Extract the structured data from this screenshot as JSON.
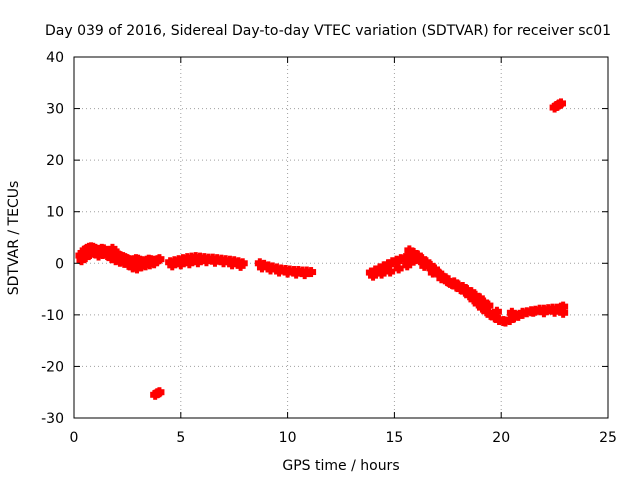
{
  "chart_data": {
    "type": "scatter",
    "title": "Day 039 of 2016, Sidereal Day-to-day VTEC variation (SDTVAR) for receiver sc01",
    "xlabel": "GPS time / hours",
    "ylabel": "SDTVAR / TECUs",
    "xlim": [
      0,
      25
    ],
    "ylim": [
      -30,
      40
    ],
    "xticks": [
      0,
      5,
      10,
      15,
      20,
      25
    ],
    "yticks": [
      -30,
      -20,
      -10,
      0,
      10,
      20,
      30,
      40
    ],
    "grid": true,
    "marker_color": "#ff0000",
    "series": [
      {
        "name": "SDTVAR",
        "x": [
          0.3,
          0.4,
          0.5,
          0.6,
          0.7,
          0.8,
          0.9,
          1.0,
          1.1,
          1.2,
          1.3,
          1.4,
          1.5,
          1.6,
          1.7,
          1.8,
          1.9,
          2.0,
          2.1,
          2.2,
          2.3,
          2.4,
          2.5,
          2.6,
          2.7,
          2.8,
          2.9,
          3.0,
          3.1,
          3.2,
          3.3,
          3.4,
          3.5,
          3.6,
          3.7,
          3.8,
          3.9,
          4.0,
          0.35,
          0.55,
          0.75,
          0.95,
          1.15,
          1.35,
          1.55,
          1.75,
          1.95,
          2.15,
          2.35,
          2.55,
          2.75,
          2.95,
          3.15,
          3.35,
          3.55,
          3.75,
          4.5,
          4.7,
          4.9,
          5.1,
          5.3,
          5.5,
          5.7,
          5.9,
          6.1,
          6.3,
          6.5,
          6.7,
          6.9,
          7.1,
          7.3,
          7.5,
          7.7,
          7.9,
          4.6,
          5.0,
          5.4,
          5.8,
          6.2,
          6.6,
          7.0,
          7.4,
          7.8,
          8.7,
          8.9,
          9.1,
          9.3,
          9.5,
          9.7,
          9.9,
          10.1,
          10.3,
          10.5,
          10.7,
          10.9,
          11.1,
          8.8,
          9.2,
          9.6,
          10.0,
          10.4,
          10.8,
          13.9,
          14.1,
          14.3,
          14.5,
          14.7,
          14.9,
          15.1,
          15.3,
          15.5,
          15.7,
          15.9,
          14.0,
          14.4,
          14.8,
          15.2,
          15.6,
          15.7,
          15.9,
          16.1,
          16.3,
          16.5,
          16.7,
          16.9,
          17.1,
          17.3,
          17.5,
          17.7,
          17.9,
          18.1,
          18.3,
          18.5,
          18.7,
          18.9,
          19.1,
          19.3,
          19.5,
          19.7,
          19.9,
          20.1,
          15.8,
          16.2,
          16.6,
          17.0,
          17.4,
          17.8,
          18.2,
          18.6,
          19.0,
          19.4,
          19.8,
          16.0,
          16.4,
          16.8,
          17.2,
          17.6,
          18.0,
          18.4,
          18.8,
          19.2,
          20.2,
          20.4,
          20.6,
          20.8,
          21.0,
          21.2,
          21.4,
          21.6,
          21.8,
          22.0,
          22.2,
          22.4,
          22.6,
          22.8,
          22.9,
          20.5,
          21.0,
          21.5,
          22.0,
          22.5,
          22.9,
          3.8,
          3.9,
          4.0,
          22.5,
          22.6,
          22.7,
          22.8
        ],
        "y": [
          1.5,
          2.0,
          2.5,
          2.8,
          3.0,
          3.1,
          3.0,
          2.8,
          2.5,
          2.6,
          2.8,
          2.7,
          2.4,
          2.2,
          2.4,
          2.8,
          2.3,
          1.8,
          1.5,
          1.3,
          1.2,
          1.0,
          0.8,
          0.6,
          0.5,
          0.6,
          0.8,
          0.7,
          0.5,
          0.4,
          0.3,
          0.5,
          0.7,
          0.6,
          0.5,
          0.4,
          0.6,
          0.8,
          0.6,
          1.2,
          1.8,
          2.0,
          1.5,
          1.8,
          1.6,
          1.0,
          0.6,
          0.3,
          0.1,
          -0.3,
          -0.8,
          -1.0,
          -0.6,
          -0.4,
          -0.2,
          0.0,
          0.2,
          0.4,
          0.6,
          0.8,
          1.0,
          1.1,
          1.2,
          1.1,
          1.0,
          0.9,
          0.9,
          0.8,
          0.7,
          0.6,
          0.5,
          0.4,
          0.2,
          0.0,
          -0.4,
          -0.2,
          0.0,
          0.2,
          0.4,
          0.3,
          0.2,
          -0.2,
          -0.5,
          0.0,
          -0.3,
          -0.6,
          -0.8,
          -1.0,
          -1.2,
          -1.3,
          -1.4,
          -1.5,
          -1.5,
          -1.6,
          -1.6,
          -1.7,
          -0.8,
          -1.2,
          -1.6,
          -1.8,
          -2.0,
          -2.1,
          -1.8,
          -1.4,
          -1.0,
          -0.6,
          -0.2,
          0.2,
          0.5,
          0.8,
          1.0,
          0.8,
          0.5,
          -2.4,
          -2.0,
          -1.6,
          -1.0,
          -0.4,
          2.5,
          2.0,
          1.5,
          0.8,
          0.2,
          -0.5,
          -1.2,
          -2.0,
          -2.8,
          -3.5,
          -4.0,
          -4.5,
          -5.0,
          -5.5,
          -6.2,
          -7.0,
          -7.8,
          -8.6,
          -9.3,
          -10.0,
          -10.5,
          -11.0,
          -11.2,
          2.0,
          0.6,
          -0.6,
          -1.8,
          -2.9,
          -3.7,
          -4.6,
          -5.6,
          -6.8,
          -8.2,
          -9.4,
          0.8,
          -0.5,
          -1.8,
          -2.9,
          -3.8,
          -4.3,
          -5.2,
          -6.3,
          -7.6,
          -11.3,
          -11.0,
          -10.5,
          -10.2,
          -9.8,
          -9.5,
          -9.3,
          -9.2,
          -9.0,
          -9.0,
          -8.9,
          -8.8,
          -8.8,
          -8.6,
          -8.4,
          -9.6,
          -9.6,
          -9.4,
          -9.5,
          -9.4,
          -9.6,
          -25.5,
          -25.2,
          -25.0,
          30.2,
          30.5,
          30.8,
          31.0
        ]
      }
    ]
  }
}
